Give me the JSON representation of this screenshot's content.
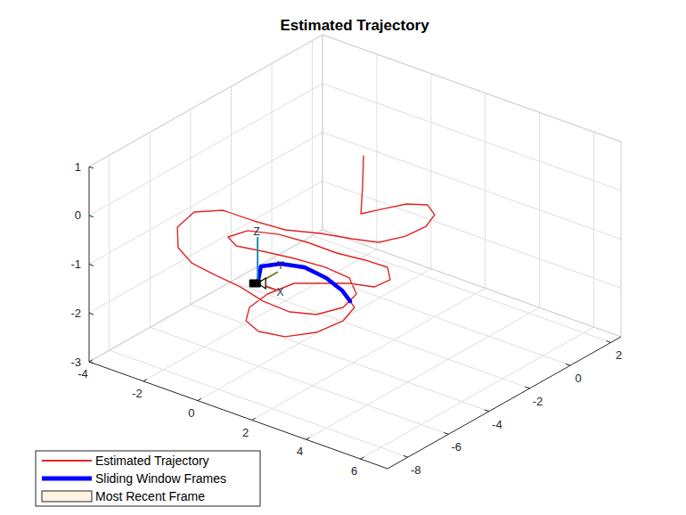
{
  "chart_data": {
    "type": "line3d",
    "title": "Estimated Trajectory",
    "series": [
      {
        "name": "Estimated Trajectory",
        "type": "line",
        "color": "#e02424",
        "x": [
          1.76,
          1.75,
          1.68,
          1.86,
          2.12,
          2.54,
          2.99,
          3.16,
          2.99,
          2.54,
          1.69,
          0.68,
          -0.36,
          -1.52,
          -2.75,
          -3.42,
          -3.29,
          -2.55,
          -1.74,
          -0.88,
          0.13,
          1.1,
          2.04,
          2.65,
          2.87,
          2.54,
          1.64,
          0.57,
          -0.58,
          -1.67,
          -2.58,
          -3.12,
          -2.93,
          -2.2,
          -1.31,
          -0.32,
          0.51,
          1.2,
          1.66,
          1.49,
          0.68,
          -0.56,
          -0.83,
          -0.8,
          -0.44,
          0.17,
          0.98,
          1.51,
          1.75,
          1.57,
          1.42,
          1.0,
          0.34,
          -0.38,
          -0.87,
          -1.01,
          -0.31
        ],
        "y": [
          -3.18,
          -3.21,
          -3.2,
          -2.44,
          -1.55,
          -1.06,
          -1.32,
          -1.97,
          -2.76,
          -3.47,
          -3.66,
          -3.84,
          -4.2,
          -4.19,
          -4.09,
          -4.6,
          -5.6,
          -6.55,
          -6.97,
          -7.03,
          -7.06,
          -7.26,
          -7.19,
          -6.69,
          -5.67,
          -4.57,
          -3.72,
          -3.48,
          -3.47,
          -3.56,
          -3.65,
          -3.33,
          -2.62,
          -2.1,
          -1.84,
          -1.72,
          -1.42,
          -1.25,
          -1.73,
          -2.29,
          -2.45,
          -3.5,
          -4.45,
          -5.38,
          -6.03,
          -6.23,
          -6.0,
          -5.17,
          -4.17,
          -3.37,
          -3.38,
          -3.22,
          -3.12,
          -3.22,
          -3.75,
          -4.53,
          -5.63
        ],
        "z": [
          1.0,
          0.4,
          -0.2,
          -0.25,
          -0.3,
          -0.35,
          -0.4,
          -0.45,
          -0.5,
          -0.55,
          -0.6,
          -0.65,
          -0.7,
          -0.75,
          -0.8,
          -0.85,
          -0.9,
          -0.95,
          -1.0,
          -1.05,
          -1.1,
          -1.15,
          -1.2,
          -1.25,
          -1.3,
          -1.35,
          -1.4,
          -1.45,
          -1.5,
          -1.55,
          -1.6,
          -1.6,
          -1.6,
          -1.65,
          -1.7,
          -1.75,
          -1.8,
          -1.85,
          -1.9,
          -1.95,
          -2.0,
          -2.0,
          -2.05,
          -2.1,
          -2.15,
          -2.2,
          -2.2,
          -2.2,
          -2.15,
          -2.1,
          -2.0,
          -1.9,
          -1.8,
          -1.7,
          -1.6,
          -1.5,
          -1.45
        ]
      },
      {
        "name": "Sliding Window Frames",
        "type": "line",
        "color": "#0000ff",
        "x": [
          1.42,
          1.0,
          0.34,
          -0.38,
          -0.87,
          -1.01,
          -0.31
        ],
        "y": [
          -3.38,
          -3.22,
          -3.12,
          -3.22,
          -3.75,
          -4.53,
          -5.63
        ],
        "z": [
          -2.0,
          -1.9,
          -1.8,
          -1.7,
          -1.6,
          -1.5,
          -1.45
        ]
      },
      {
        "name": "Most Recent Frame",
        "type": "camera",
        "color": "#fdf3e2",
        "x": [
          -0.31
        ],
        "y": [
          -5.63
        ],
        "z": [
          -1.45
        ],
        "frame_axis_labels": [
          "X",
          "Y",
          "Z"
        ]
      }
    ],
    "xlim": [
      -4,
      7
    ],
    "ylim": [
      -9,
      2.5
    ],
    "zlim": [
      -3,
      1
    ],
    "xticks": [
      -4,
      -2,
      0,
      2,
      4,
      6
    ],
    "yticks": [
      -8,
      -6,
      -4,
      -2,
      0,
      2
    ],
    "zticks": [
      -3,
      -2,
      -1,
      0,
      1
    ],
    "grid": true,
    "legend": "southwest"
  }
}
